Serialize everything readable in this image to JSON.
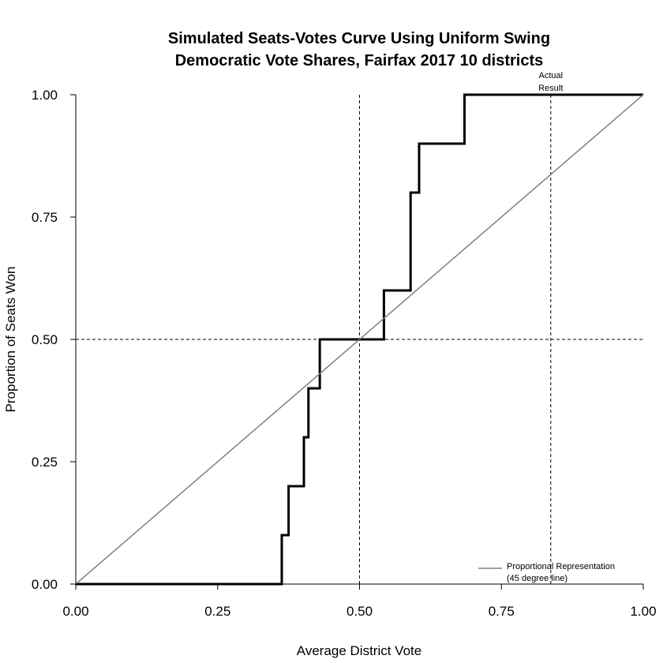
{
  "chart_data": {
    "type": "line",
    "title_line1": "Simulated Seats-Votes Curve Using Uniform Swing",
    "title_line2": "Democratic Vote Shares, Fairfax 2017 10 districts",
    "xlabel": "Average District Vote",
    "ylabel": "Proportion of Seats Won",
    "xlim": [
      0,
      1
    ],
    "ylim": [
      0,
      1
    ],
    "x_ticks": [
      "0.00",
      "0.25",
      "0.50",
      "0.75",
      "1.00"
    ],
    "y_ticks": [
      "0.00",
      "0.25",
      "0.50",
      "0.75",
      "1.00"
    ],
    "grid": false,
    "reference_lines": {
      "vertical_x": 0.5,
      "horizontal_y": 0.5,
      "actual_result_x": 0.837,
      "actual_result_label_line1": "Actual",
      "actual_result_label_line2": "Result"
    },
    "series": [
      {
        "color": "#000000",
        "style": "step",
        "points": [
          [
            0.0,
            0.0
          ],
          [
            0.363,
            0.0
          ],
          [
            0.363,
            0.1
          ],
          [
            0.375,
            0.1
          ],
          [
            0.375,
            0.2
          ],
          [
            0.402,
            0.2
          ],
          [
            0.402,
            0.3
          ],
          [
            0.41,
            0.3
          ],
          [
            0.41,
            0.4
          ],
          [
            0.43,
            0.4
          ],
          [
            0.43,
            0.5
          ],
          [
            0.543,
            0.5
          ],
          [
            0.543,
            0.6
          ],
          [
            0.59,
            0.6
          ],
          [
            0.59,
            0.8
          ],
          [
            0.605,
            0.8
          ],
          [
            0.605,
            0.9
          ],
          [
            0.685,
            0.9
          ],
          [
            0.685,
            1.0
          ],
          [
            1.0,
            1.0
          ]
        ]
      },
      {
        "name": "Proportional Representation",
        "name_line2": "(45 degree line)",
        "color": "#808080",
        "style": "line",
        "points": [
          [
            0,
            0
          ],
          [
            1,
            1
          ]
        ]
      }
    ],
    "legend": {
      "position": "bottom-right",
      "entries": [
        {
          "label_line1": "Proportional Representation",
          "label_line2": "(45 degree line)",
          "color": "#808080"
        }
      ]
    }
  }
}
